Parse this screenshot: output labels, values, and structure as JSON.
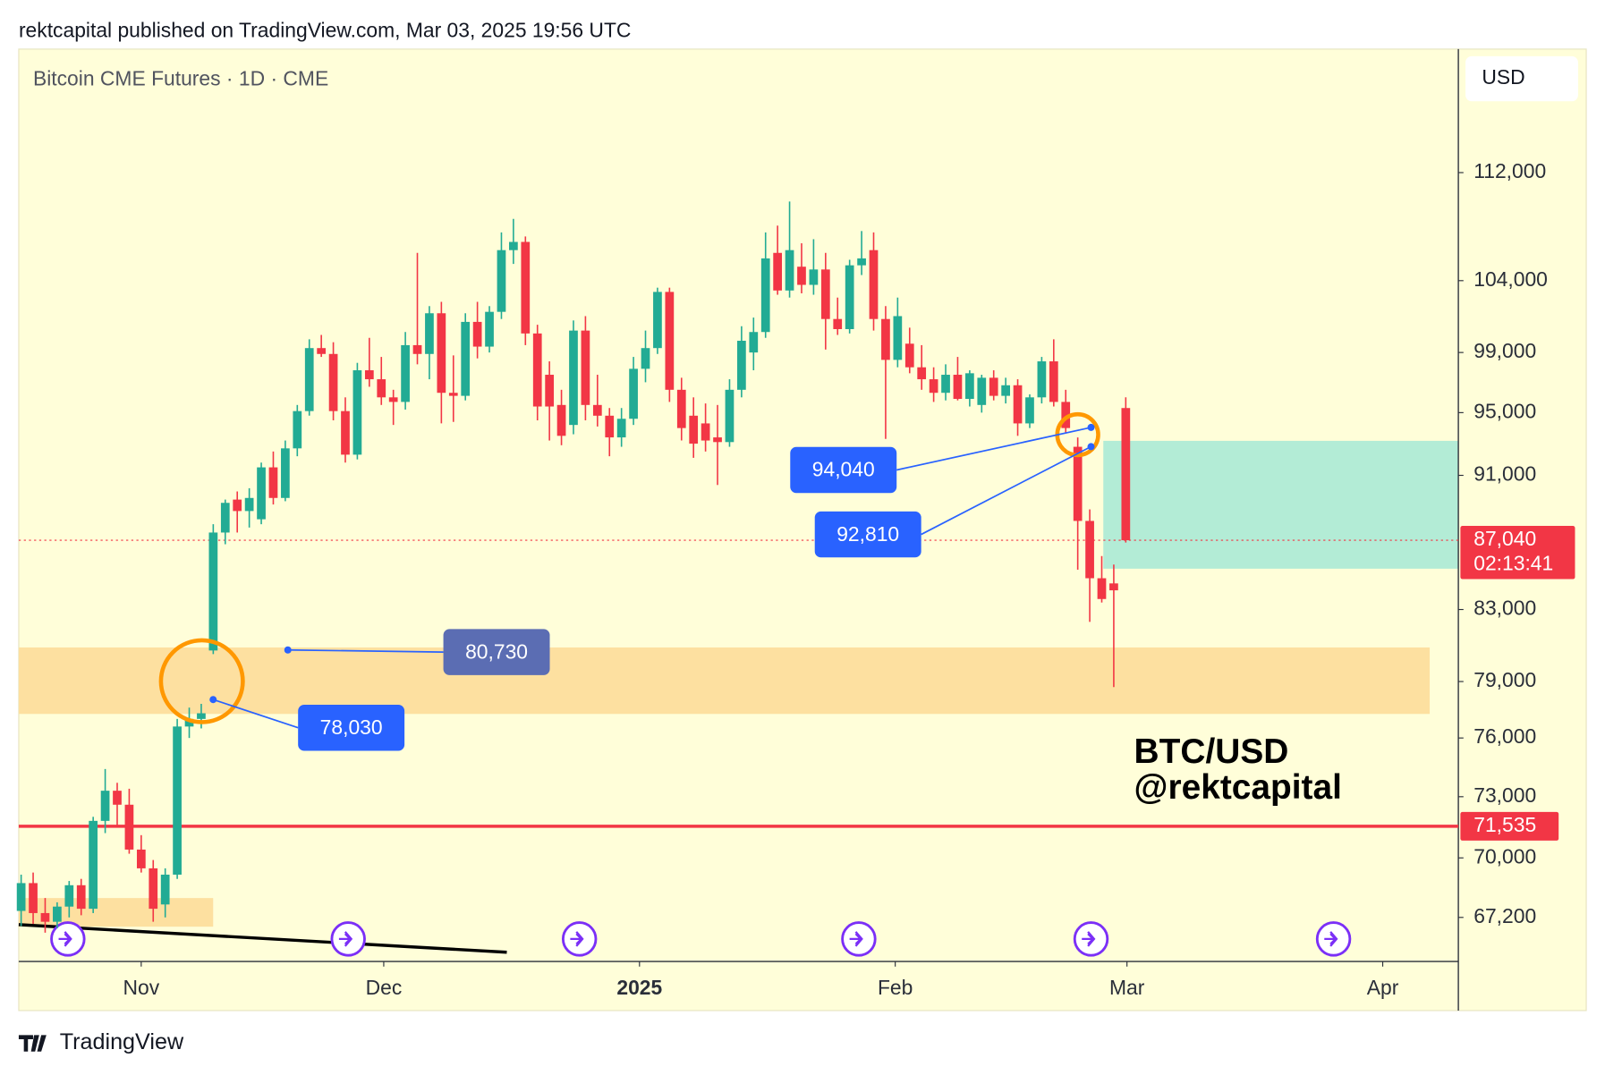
{
  "header": "rektcapital published on TradingView.com, Mar 03, 2025 19:56 UTC",
  "footer": "TradingView",
  "chart_data": {
    "type": "candlestick",
    "title": "Bitcoin CME Futures · 1D · CME",
    "currency": "USD",
    "up_color": "#22ab94",
    "down_color": "#f23645",
    "log_scale": true,
    "open": [
      67500,
      68800,
      67400,
      67000,
      67700,
      68700,
      67600,
      71800,
      73300,
      72600,
      70400,
      69500,
      67800,
      69200,
      76600,
      77000,
      80700,
      87500,
      89500,
      88800,
      88300,
      91500,
      89600,
      92700,
      95100,
      99300,
      98900,
      95100,
      92300,
      97800,
      97200,
      96000,
      95700,
      99500,
      98900,
      101700,
      96300,
      96100,
      101100,
      99400,
      101800,
      106200,
      106800,
      100300,
      97500,
      95500,
      94200,
      100500,
      95500,
      94800,
      93400,
      94600,
      97900,
      99300,
      103200,
      96500,
      94800,
      94300,
      93400,
      93100,
      96500,
      99000,
      100400,
      106000,
      103300,
      105000,
      103700,
      104800,
      101300,
      100600,
      105100,
      106200,
      101300,
      98500,
      99600,
      98000,
      97200,
      96300,
      97500,
      95900,
      95500,
      97300,
      96100,
      96800,
      94300,
      96000,
      98400,
      95700,
      92800,
      88200,
      84800,
      84500,
      95300
    ],
    "high": [
      69200,
      69300,
      68100,
      67900,
      68900,
      69000,
      72000,
      74400,
      73700,
      73400,
      71100,
      69900,
      69500,
      77000,
      77600,
      77800,
      88000,
      89500,
      90000,
      90200,
      91800,
      92500,
      93200,
      95500,
      99900,
      100200,
      99700,
      96000,
      98300,
      100000,
      98700,
      96500,
      100400,
      106000,
      102200,
      102500,
      98800,
      101700,
      102500,
      102200,
      107500,
      108500,
      107200,
      100900,
      98400,
      96500,
      101200,
      101500,
      97500,
      95300,
      95300,
      98700,
      100500,
      103500,
      103500,
      97300,
      96000,
      95600,
      95500,
      97200,
      100800,
      101400,
      107500,
      108000,
      109800,
      106700,
      107000,
      106000,
      102800,
      105500,
      107600,
      107500,
      102200,
      102800,
      100700,
      99500,
      98000,
      98200,
      98700,
      97800,
      97500,
      97800,
      97300,
      97200,
      96200,
      98700,
      99900,
      96500,
      93400,
      88900,
      86100,
      85600,
      96000
    ],
    "low": [
      66800,
      66900,
      66500,
      66700,
      67200,
      67300,
      67400,
      71200,
      71500,
      70200,
      69300,
      67000,
      67200,
      69000,
      76000,
      76500,
      80500,
      86800,
      87500,
      87800,
      88000,
      89200,
      89400,
      92200,
      94800,
      98700,
      94500,
      91800,
      92000,
      96700,
      95500,
      94200,
      95200,
      98200,
      97200,
      94300,
      94400,
      95800,
      98600,
      99000,
      101300,
      105200,
      99500,
      94500,
      93200,
      92900,
      93600,
      94500,
      94100,
      92200,
      92800,
      94200,
      97000,
      98900,
      95700,
      93200,
      92100,
      92500,
      90400,
      92800,
      96000,
      97800,
      100000,
      103000,
      102800,
      103100,
      103000,
      99200,
      100200,
      100300,
      104400,
      100500,
      93300,
      98000,
      97600,
      96500,
      95700,
      95800,
      95800,
      95400,
      95000,
      95800,
      95600,
      93500,
      94000,
      95600,
      95400,
      93700,
      85300,
      82300,
      83400,
      78700,
      86900
    ],
    "close": [
      68800,
      67400,
      67000,
      67700,
      68700,
      67600,
      71800,
      73300,
      72600,
      70400,
      69500,
      67600,
      69200,
      76600,
      77000,
      77300,
      87500,
      89300,
      88800,
      89600,
      91500,
      89600,
      92700,
      95100,
      99300,
      98900,
      95100,
      92300,
      97800,
      97200,
      96000,
      95700,
      99500,
      98900,
      101700,
      96300,
      96100,
      101100,
      99400,
      101800,
      106200,
      106800,
      100300,
      95400,
      95400,
      93500,
      100500,
      95500,
      94800,
      93400,
      94600,
      97900,
      99300,
      103200,
      96500,
      94000,
      93000,
      93200,
      93100,
      96500,
      99800,
      100400,
      105600,
      103300,
      106200,
      103700,
      104800,
      101300,
      100600,
      105100,
      105600,
      101300,
      98500,
      101500,
      98000,
      97200,
      96300,
      97500,
      95900,
      97600,
      97300,
      96100,
      96800,
      94300,
      96000,
      98400,
      95700,
      94000,
      88200,
      84800,
      83600,
      84100,
      87040
    ],
    "ylim": [
      65200,
      121900
    ],
    "yticks": [
      {
        "value": 67200,
        "label": "67,200"
      },
      {
        "value": 70000,
        "label": "70,000"
      },
      {
        "value": 73000,
        "label": "73,000"
      },
      {
        "value": 76000,
        "label": "76,000"
      },
      {
        "value": 79000,
        "label": "79,000"
      },
      {
        "value": 83000,
        "label": "83,000"
      },
      {
        "value": 91000,
        "label": "91,000"
      },
      {
        "value": 95000,
        "label": "95,000"
      },
      {
        "value": 99000,
        "label": "99,000"
      },
      {
        "value": 104000,
        "label": "104,000"
      },
      {
        "value": 112000,
        "label": "112,000"
      }
    ],
    "xlim": [
      -0.2,
      119.7
    ],
    "xticks": [
      {
        "value": 10,
        "label": "Nov"
      },
      {
        "value": 30.2,
        "label": "Dec"
      },
      {
        "value": 51.5,
        "label": "2025"
      },
      {
        "value": 72.8,
        "label": "Feb"
      },
      {
        "value": 92.1,
        "label": "Mar"
      },
      {
        "value": 113.4,
        "label": "Apr"
      }
    ],
    "annotations": [
      {
        "value": 94040,
        "label": "94,040"
      },
      {
        "value": 92810,
        "label": "92,810"
      },
      {
        "value": 80730,
        "label": "80,730"
      },
      {
        "value": 78030,
        "label": "78,030"
      }
    ],
    "price_lines": [
      {
        "value": 87040,
        "label": "87,040",
        "countdown": "02:13:41"
      },
      {
        "value": 71535,
        "label": "71,535"
      }
    ],
    "watermark": [
      "BTC/USD",
      "@rektcapital"
    ]
  }
}
